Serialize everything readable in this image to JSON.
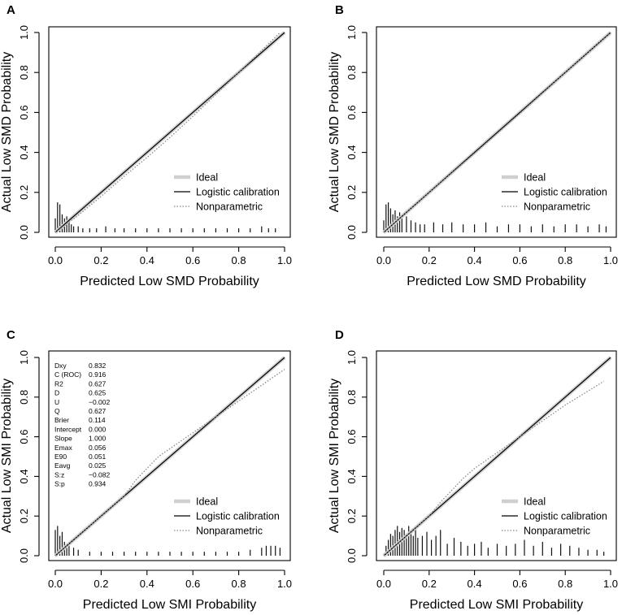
{
  "legend": {
    "ideal": "Ideal",
    "logistic": "Logistic calibration",
    "nonparametric": "Nonparametric"
  },
  "colors": {
    "ideal": "#cfcfcf",
    "logistic": "#000000",
    "nonparametric": "#8a8a8a",
    "spikes": "#111111"
  },
  "ticks": [
    "0.0",
    "0.2",
    "0.4",
    "0.6",
    "0.8",
    "1.0"
  ],
  "chart_data": [
    {
      "panel": "A",
      "type": "line",
      "xlabel": "Predicted Low SMD Probability",
      "ylabel": "Actual Low SMD Probability",
      "xlim": [
        0,
        1
      ],
      "ylim": [
        0,
        1
      ],
      "ideal": [
        [
          0,
          0
        ],
        [
          1,
          1
        ]
      ],
      "logistic": [
        [
          0,
          0
        ],
        [
          1,
          1
        ]
      ],
      "nonparametric": [
        [
          0,
          0
        ],
        [
          0.1,
          0.085
        ],
        [
          0.2,
          0.18
        ],
        [
          0.3,
          0.28
        ],
        [
          0.4,
          0.375
        ],
        [
          0.5,
          0.475
        ],
        [
          0.6,
          0.58
        ],
        [
          0.7,
          0.69
        ],
        [
          0.8,
          0.8
        ],
        [
          0.9,
          0.91
        ],
        [
          0.98,
          1.0
        ]
      ],
      "histogram": {
        "x": [
          0.0,
          0.01,
          0.02,
          0.03,
          0.04,
          0.05,
          0.06,
          0.07,
          0.08,
          0.1,
          0.12,
          0.15,
          0.18,
          0.22,
          0.26,
          0.3,
          0.35,
          0.4,
          0.45,
          0.5,
          0.55,
          0.6,
          0.65,
          0.7,
          0.75,
          0.8,
          0.85,
          0.9,
          0.93,
          0.96
        ],
        "h": [
          0.07,
          0.15,
          0.14,
          0.09,
          0.07,
          0.08,
          0.05,
          0.04,
          0.03,
          0.03,
          0.02,
          0.02,
          0.02,
          0.03,
          0.02,
          0.02,
          0.02,
          0.02,
          0.02,
          0.02,
          0.02,
          0.02,
          0.02,
          0.02,
          0.02,
          0.02,
          0.02,
          0.03,
          0.02,
          0.02
        ]
      },
      "legend_position": "bottom-right"
    },
    {
      "panel": "B",
      "type": "line",
      "xlabel": "Predicted Low SMD Probability",
      "ylabel": "Actual Low SMD Probability",
      "xlim": [
        0,
        1
      ],
      "ylim": [
        0,
        1
      ],
      "ideal": [
        [
          0,
          0
        ],
        [
          1,
          1
        ]
      ],
      "logistic": [
        [
          0,
          0
        ],
        [
          1,
          1
        ]
      ],
      "nonparametric": [
        [
          0,
          0
        ],
        [
          0.2,
          0.2
        ],
        [
          0.4,
          0.395
        ],
        [
          0.6,
          0.595
        ],
        [
          0.8,
          0.8
        ],
        [
          1.0,
          1.0
        ]
      ],
      "histogram": {
        "x": [
          0.0,
          0.01,
          0.02,
          0.03,
          0.04,
          0.05,
          0.06,
          0.07,
          0.08,
          0.1,
          0.12,
          0.14,
          0.16,
          0.18,
          0.22,
          0.26,
          0.3,
          0.35,
          0.4,
          0.45,
          0.5,
          0.55,
          0.6,
          0.65,
          0.7,
          0.75,
          0.8,
          0.85,
          0.9,
          0.95,
          0.98
        ],
        "h": [
          0.06,
          0.14,
          0.15,
          0.12,
          0.09,
          0.11,
          0.08,
          0.1,
          0.07,
          0.08,
          0.06,
          0.05,
          0.04,
          0.04,
          0.05,
          0.04,
          0.05,
          0.04,
          0.04,
          0.05,
          0.03,
          0.04,
          0.04,
          0.03,
          0.04,
          0.03,
          0.04,
          0.04,
          0.03,
          0.04,
          0.03
        ]
      },
      "legend_position": "bottom-right"
    },
    {
      "panel": "C",
      "type": "line",
      "xlabel": "Predicted Low SMI Probability",
      "ylabel": "Actual Low SMI Probability",
      "xlim": [
        0,
        1
      ],
      "ylim": [
        0,
        1
      ],
      "ideal": [
        [
          0,
          0
        ],
        [
          1,
          1
        ]
      ],
      "logistic": [
        [
          0,
          0
        ],
        [
          1,
          1
        ]
      ],
      "nonparametric": [
        [
          0,
          0
        ],
        [
          0.1,
          0.1
        ],
        [
          0.2,
          0.2
        ],
        [
          0.3,
          0.3
        ],
        [
          0.35,
          0.38
        ],
        [
          0.4,
          0.44
        ],
        [
          0.45,
          0.5
        ],
        [
          0.5,
          0.54
        ],
        [
          0.55,
          0.58
        ],
        [
          0.6,
          0.62
        ],
        [
          0.7,
          0.7
        ],
        [
          0.8,
          0.78
        ],
        [
          0.9,
          0.86
        ],
        [
          1.0,
          0.94
        ]
      ],
      "histogram": {
        "x": [
          0.0,
          0.01,
          0.02,
          0.03,
          0.04,
          0.05,
          0.06,
          0.08,
          0.1,
          0.15,
          0.2,
          0.25,
          0.3,
          0.35,
          0.4,
          0.45,
          0.5,
          0.55,
          0.6,
          0.65,
          0.7,
          0.75,
          0.8,
          0.85,
          0.9,
          0.92,
          0.94,
          0.96,
          0.98
        ],
        "h": [
          0.13,
          0.15,
          0.1,
          0.12,
          0.07,
          0.06,
          0.05,
          0.04,
          0.03,
          0.02,
          0.02,
          0.02,
          0.02,
          0.02,
          0.02,
          0.02,
          0.02,
          0.02,
          0.02,
          0.02,
          0.02,
          0.02,
          0.02,
          0.03,
          0.04,
          0.05,
          0.05,
          0.05,
          0.04
        ]
      },
      "stats": [
        {
          "label": "Dxy",
          "value": "0.832"
        },
        {
          "label": "C (ROC)",
          "value": "0.916"
        },
        {
          "label": "R2",
          "value": "0.627"
        },
        {
          "label": "D",
          "value": "0.625"
        },
        {
          "label": "U",
          "value": "−0.002"
        },
        {
          "label": "Q",
          "value": "0.627"
        },
        {
          "label": "Brier",
          "value": "0.114"
        },
        {
          "label": "Intercept",
          "value": "0.000"
        },
        {
          "label": "Slope",
          "value": "1.000"
        },
        {
          "label": "Emax",
          "value": "0.056"
        },
        {
          "label": "E90",
          "value": "0.051"
        },
        {
          "label": "Eavg",
          "value": "0.025"
        },
        {
          "label": "S:z",
          "value": "−0.082"
        },
        {
          "label": "S:p",
          "value": "0.934"
        }
      ],
      "legend_position": "bottom-right"
    },
    {
      "panel": "D",
      "type": "line",
      "xlabel": "Predicted Low SMI Probability",
      "ylabel": "Actual Low SMI Probability",
      "xlim": [
        0,
        1
      ],
      "ylim": [
        0,
        1
      ],
      "ideal": [
        [
          0,
          0
        ],
        [
          1,
          1
        ]
      ],
      "logistic": [
        [
          0,
          0
        ],
        [
          1,
          1
        ]
      ],
      "nonparametric": [
        [
          0,
          0
        ],
        [
          0.1,
          0.1
        ],
        [
          0.2,
          0.2
        ],
        [
          0.25,
          0.27
        ],
        [
          0.3,
          0.33
        ],
        [
          0.35,
          0.39
        ],
        [
          0.4,
          0.44
        ],
        [
          0.45,
          0.48
        ],
        [
          0.5,
          0.52
        ],
        [
          0.6,
          0.6
        ],
        [
          0.7,
          0.68
        ],
        [
          0.8,
          0.76
        ],
        [
          0.9,
          0.83
        ],
        [
          0.97,
          0.88
        ]
      ],
      "histogram": {
        "x": [
          0.01,
          0.02,
          0.03,
          0.04,
          0.05,
          0.06,
          0.07,
          0.08,
          0.09,
          0.1,
          0.11,
          0.12,
          0.13,
          0.14,
          0.15,
          0.17,
          0.19,
          0.21,
          0.23,
          0.25,
          0.28,
          0.31,
          0.34,
          0.37,
          0.4,
          0.43,
          0.46,
          0.5,
          0.54,
          0.58,
          0.62,
          0.66,
          0.7,
          0.74,
          0.78,
          0.82,
          0.86,
          0.9,
          0.94,
          0.97
        ],
        "h": [
          0.05,
          0.08,
          0.11,
          0.1,
          0.13,
          0.15,
          0.12,
          0.14,
          0.13,
          0.11,
          0.15,
          0.12,
          0.1,
          0.14,
          0.09,
          0.1,
          0.12,
          0.08,
          0.1,
          0.13,
          0.06,
          0.09,
          0.07,
          0.05,
          0.06,
          0.07,
          0.04,
          0.06,
          0.05,
          0.06,
          0.08,
          0.05,
          0.07,
          0.04,
          0.06,
          0.05,
          0.04,
          0.03,
          0.03,
          0.02
        ]
      },
      "legend_position": "bottom-right"
    }
  ]
}
